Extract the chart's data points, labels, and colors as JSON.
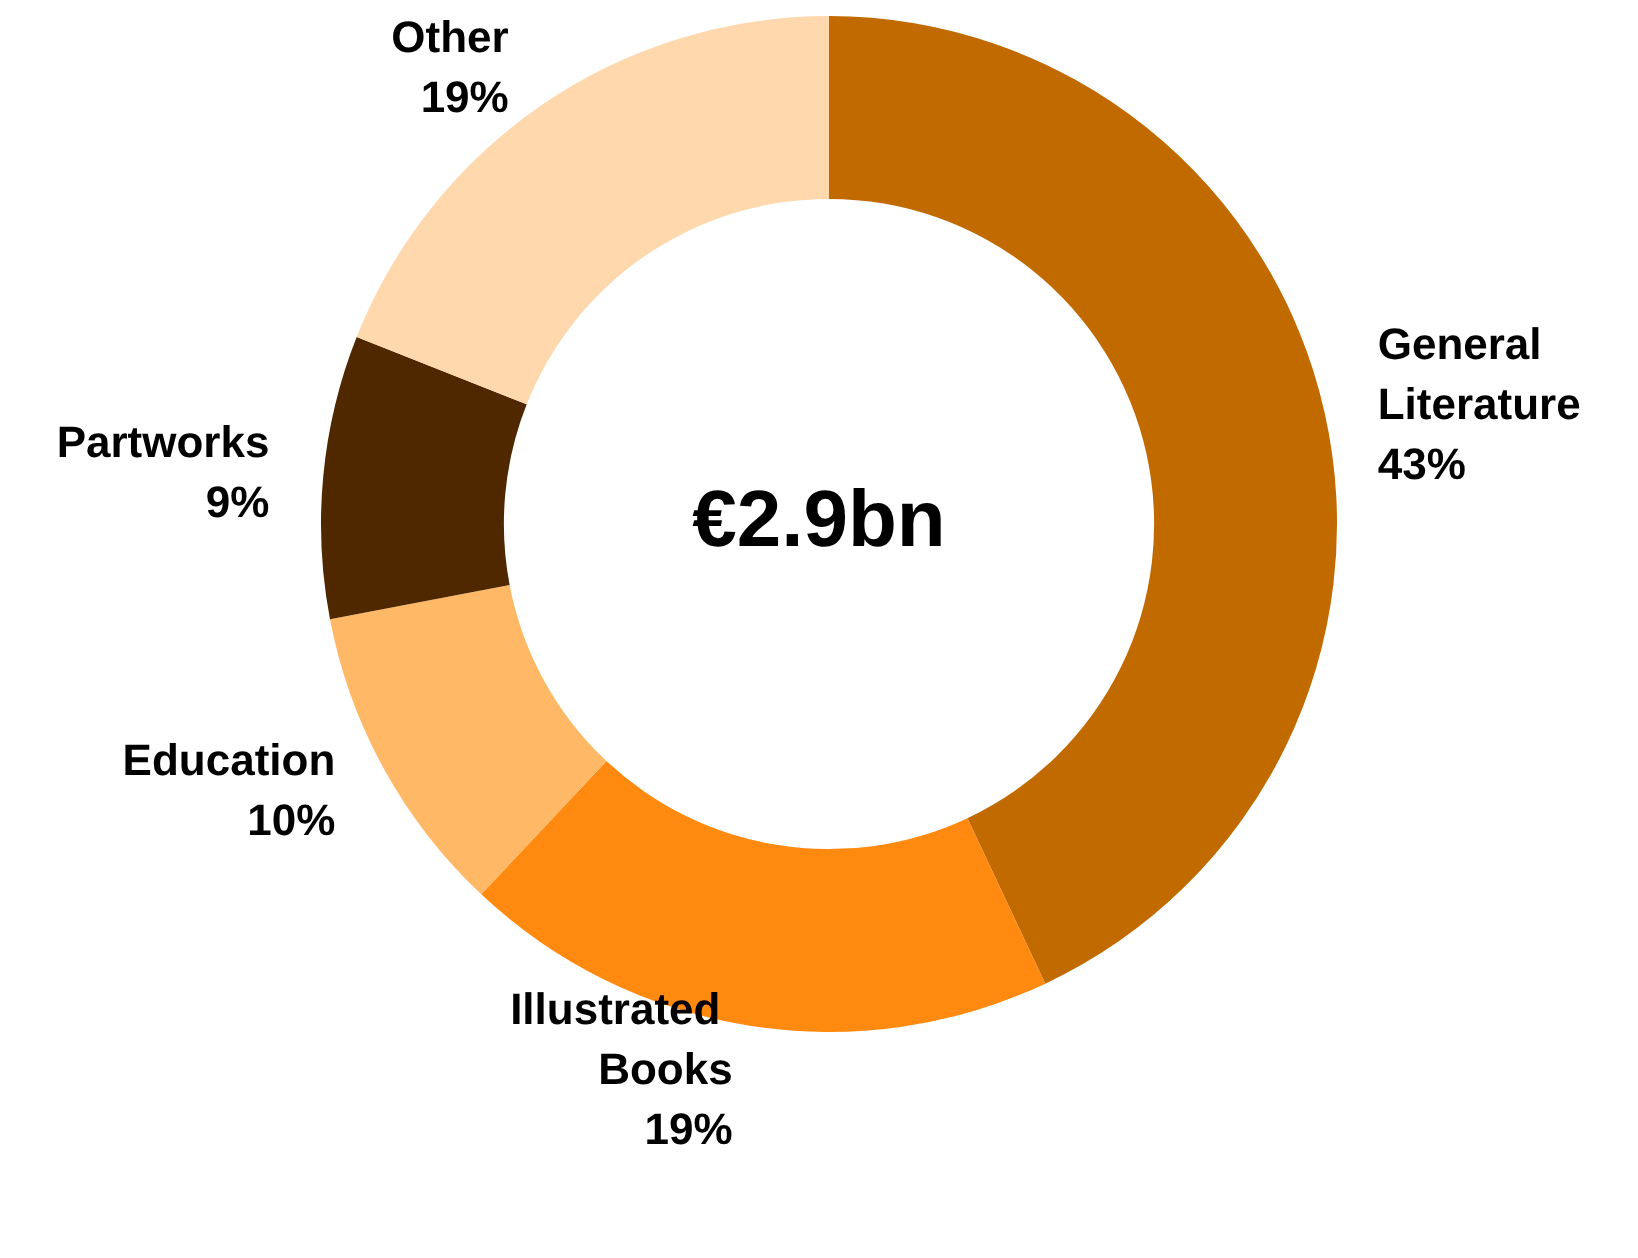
{
  "chart_data": {
    "type": "donut",
    "categories": [
      "General Literature",
      "Illustrated Books",
      "Education",
      "Partworks",
      "Other"
    ],
    "values": [
      43,
      19,
      10,
      9,
      19
    ],
    "value_labels": [
      "43%",
      "19%",
      "10%",
      "9%",
      "19%"
    ],
    "colors": [
      "#c06a00",
      "#ff8a0f",
      "#ffb865",
      "#4f2800",
      "#ffd8ae"
    ],
    "annotations": [
      "€2.9bn"
    ],
    "legend": false
  }
}
